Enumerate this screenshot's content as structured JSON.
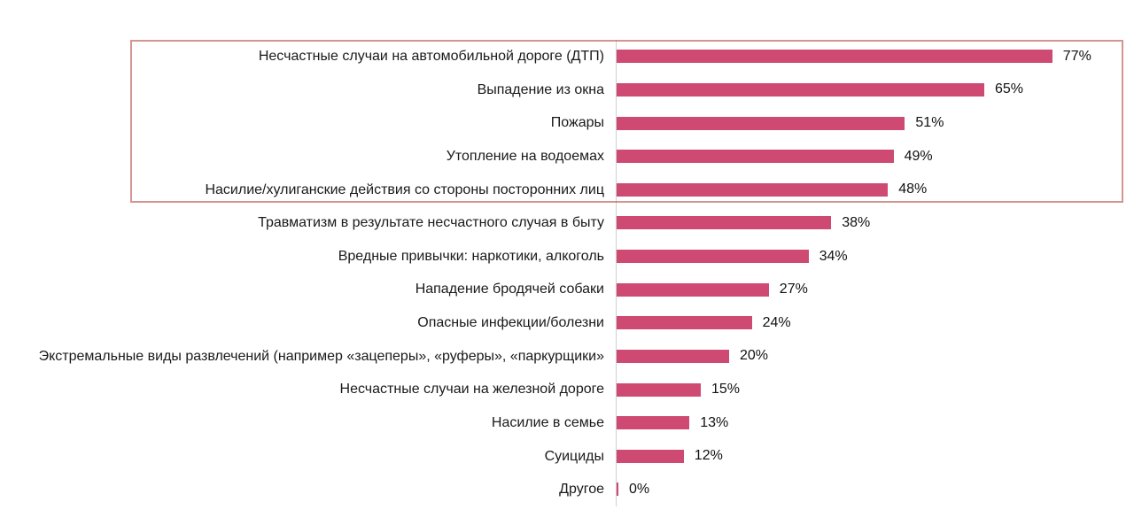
{
  "chart_data": {
    "type": "bar",
    "orientation": "horizontal",
    "title": "",
    "xlabel": "",
    "ylabel": "",
    "xlim": [
      0,
      100
    ],
    "grid": false,
    "legend": false,
    "value_suffix": "%",
    "categories": [
      "Несчастные случаи на автомобильной дороге (ДТП)",
      "Выпадение из окна",
      "Пожары",
      "Утопление на водоемах",
      "Насилие/хулиганские действия со стороны посторонних лиц",
      "Травматизм в результате несчастного случая в быту",
      "Вредные привычки: наркотики, алкоголь",
      "Нападение бродячей собаки",
      "Опасные инфекции/болезни",
      "Экстремальные виды развлечений (например «зацеперы», «руферы», «паркурщики»",
      "Несчастные случаи на железной дороге",
      "Насилие в семье",
      "Суициды",
      "Другое"
    ],
    "values": [
      77,
      65,
      51,
      49,
      48,
      38,
      34,
      27,
      24,
      20,
      15,
      13,
      12,
      0
    ],
    "data_labels": [
      "77%",
      "65%",
      "51%",
      "49%",
      "48%",
      "38%",
      "34%",
      "27%",
      "24%",
      "20%",
      "15%",
      "13%",
      "12%",
      "0%"
    ],
    "bar_color": "#ce4a73",
    "axis_line_color": "#d0d0d0",
    "highlight_box": {
      "rows_enclosed_from": 1,
      "rows_enclosed_to": 5,
      "border_color": "#b8544e"
    }
  }
}
